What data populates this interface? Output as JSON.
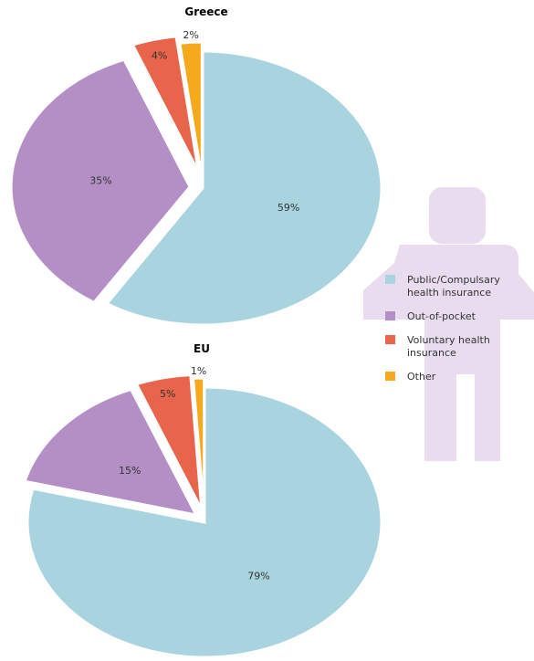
{
  "chart_data": [
    {
      "type": "pie",
      "title": "Greece",
      "categories": [
        "Public/Compulsary health insurance",
        "Out-of-pocket",
        "Voluntary health insurance",
        "Other"
      ],
      "values": [
        59,
        35,
        4,
        2
      ],
      "labels": [
        "59%",
        "35%",
        "4%",
        "2%"
      ]
    },
    {
      "type": "pie",
      "title": "EU",
      "categories": [
        "Public/Compulsary health insurance",
        "Out-of-pocket",
        "Voluntary health insurance",
        "Other"
      ],
      "values": [
        79,
        15,
        5,
        1
      ],
      "labels": [
        "79%",
        "15%",
        "5%",
        "1%"
      ]
    }
  ],
  "legend": {
    "placement": "right",
    "items": [
      {
        "label_lines": [
          "Public/Compulsary",
          "health insurance"
        ],
        "color": "#a9d4df"
      },
      {
        "label_lines": [
          "Out-of-pocket"
        ],
        "color": "#b48fc5"
      },
      {
        "label_lines": [
          "Voluntary health",
          "insurance"
        ],
        "color": "#e8644a"
      },
      {
        "label_lines": [
          "Other"
        ],
        "color": "#f4aa1c"
      }
    ]
  },
  "colors": {
    "public": "#a9d4df",
    "out_of_pocket": "#b48fc5",
    "voluntary": "#e8644a",
    "other": "#f4aa1c",
    "figure_watermark": "#e9dcef"
  },
  "decoration": {
    "icon": "person-silhouette-icon"
  }
}
